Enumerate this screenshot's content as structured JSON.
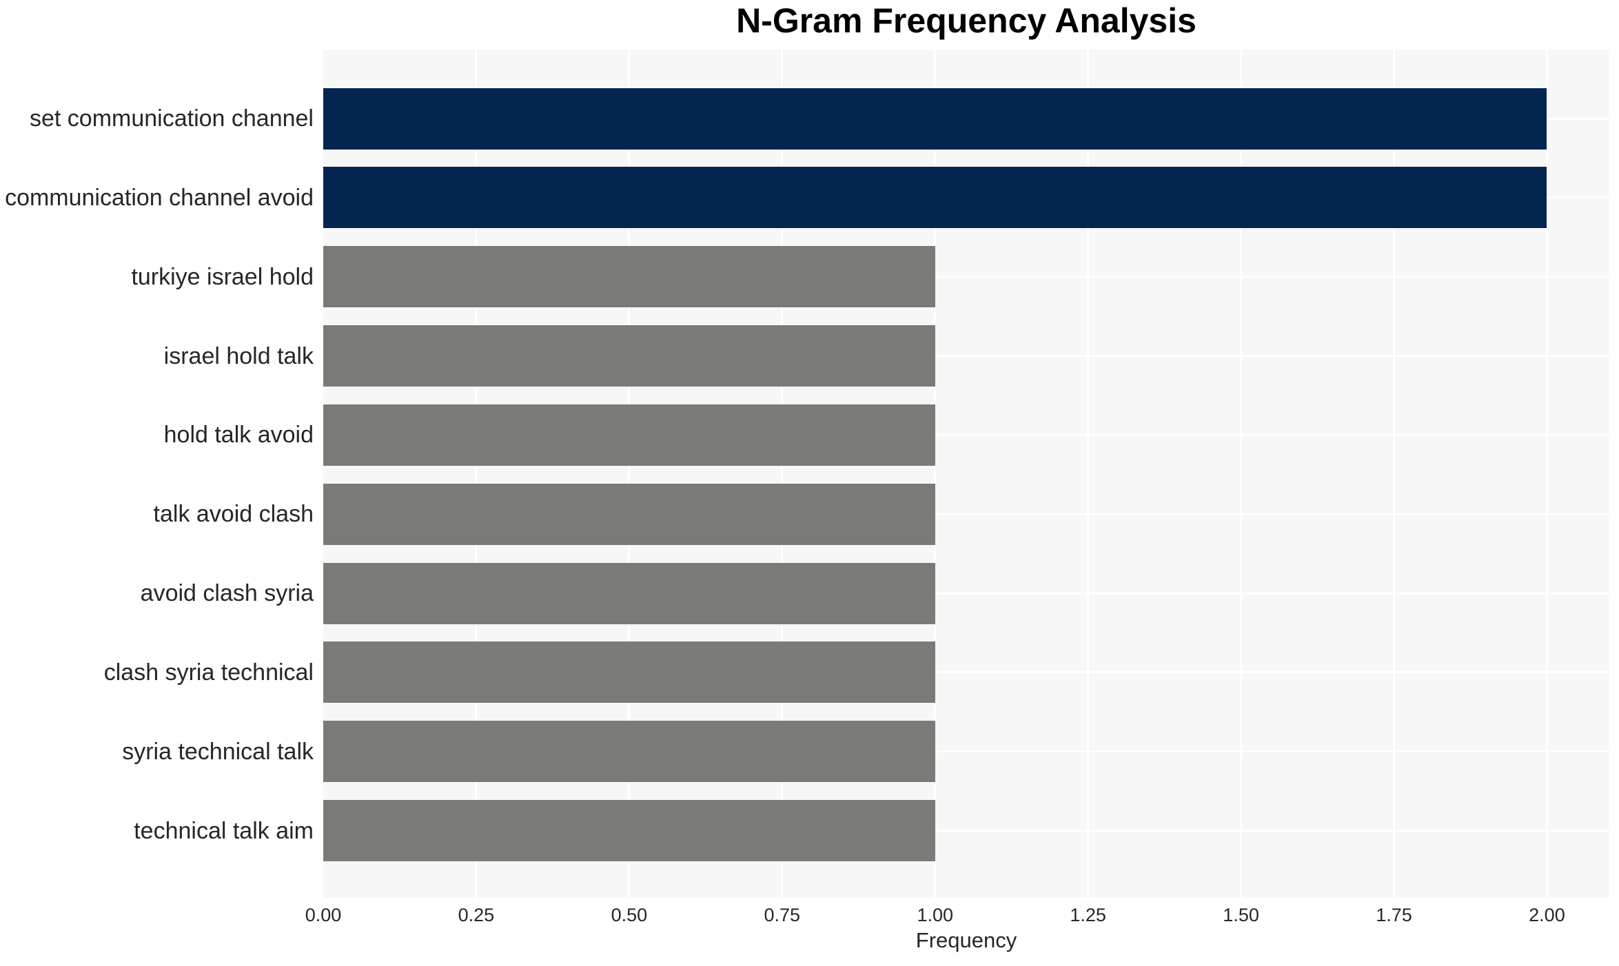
{
  "title": "N-Gram Frequency Analysis",
  "chart_data": {
    "type": "bar",
    "orientation": "horizontal",
    "title": "N-Gram Frequency Analysis",
    "xlabel": "Frequency",
    "ylabel": "",
    "categories": [
      "set communication channel",
      "communication channel avoid",
      "turkiye israel hold",
      "israel hold talk",
      "hold talk avoid",
      "talk avoid clash",
      "avoid clash syria",
      "clash syria technical",
      "syria technical talk",
      "technical talk aim"
    ],
    "values": [
      2,
      2,
      1,
      1,
      1,
      1,
      1,
      1,
      1,
      1
    ],
    "bar_colors": [
      "#03254f",
      "#03254f",
      "#7a7a77",
      "#7a7a77",
      "#7a7a77",
      "#7a7a77",
      "#7a7a77",
      "#7a7a77",
      "#7a7a77",
      "#7a7a77"
    ],
    "xticks": [
      "0.00",
      "0.25",
      "0.50",
      "0.75",
      "1.00",
      "1.25",
      "1.50",
      "1.75",
      "2.00"
    ],
    "xlim": [
      0,
      2.102
    ],
    "grid": true,
    "legend": false,
    "plot_bg": "#f7f7f7",
    "grid_color": "#ffffff",
    "label_color": "#262626",
    "title_color": "#000000"
  }
}
